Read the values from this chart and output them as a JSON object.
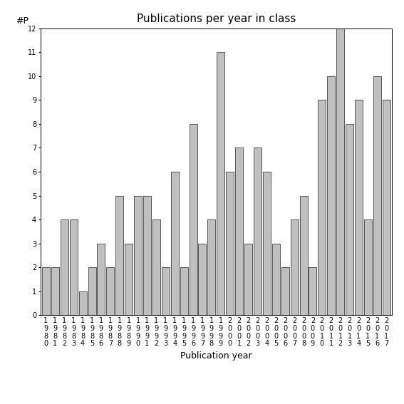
{
  "title": "Publications per year in class",
  "xlabel": "Publication year",
  "ylabel": "#P",
  "years": [
    "1980",
    "1981",
    "1982",
    "1983",
    "1984",
    "1985",
    "1986",
    "1987",
    "1988",
    "1989",
    "1990",
    "1991",
    "1992",
    "1993",
    "1994",
    "1995",
    "1996",
    "1997",
    "1998",
    "1999",
    "2000",
    "2001",
    "2002",
    "2003",
    "2004",
    "2005",
    "2006",
    "2007",
    "2008",
    "2009",
    "2010",
    "2011",
    "2012",
    "2013",
    "2014",
    "2015",
    "2016",
    "2017"
  ],
  "values": [
    2,
    2,
    4,
    4,
    1,
    2,
    3,
    2,
    5,
    3,
    5,
    5,
    4,
    2,
    6,
    2,
    8,
    3,
    4,
    11,
    6,
    7,
    3,
    7,
    6,
    3,
    2,
    4,
    5,
    2,
    9,
    10,
    12,
    8,
    9,
    4,
    10,
    9
  ],
  "bar_color": "#c0c0c0",
  "bar_edge_color": "#404040",
  "ylim": [
    0,
    12
  ],
  "yticks": [
    0,
    1,
    2,
    3,
    4,
    5,
    6,
    7,
    8,
    9,
    10,
    11,
    12
  ],
  "bg_color": "#ffffff",
  "title_fontsize": 11,
  "label_fontsize": 9,
  "tick_fontsize": 7
}
